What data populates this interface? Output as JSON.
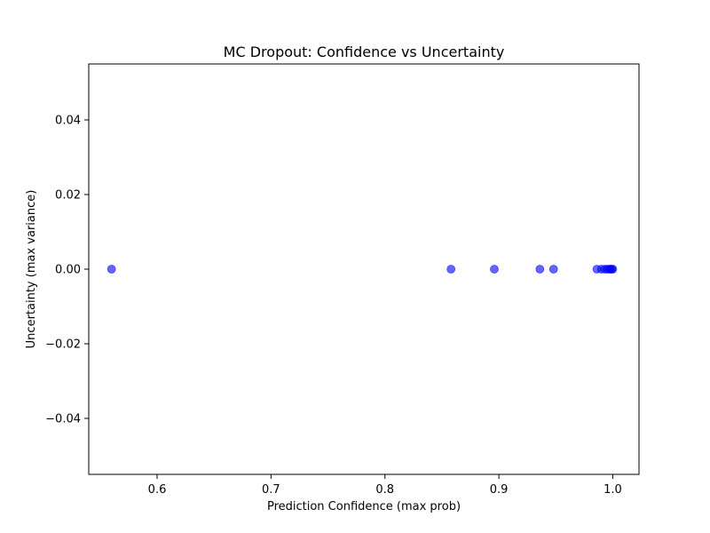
{
  "chart_data": {
    "type": "scatter",
    "title": "MC Dropout: Confidence vs Uncertainty",
    "xlabel": "Prediction Confidence (max prob)",
    "ylabel": "Uncertainty (max variance)",
    "xlim": [
      0.54,
      1.023
    ],
    "ylim": [
      -0.055,
      0.055
    ],
    "xticks": [
      0.6,
      0.7,
      0.8,
      0.9,
      1.0
    ],
    "xtick_labels": [
      "0.6",
      "0.7",
      "0.8",
      "0.9",
      "1.0"
    ],
    "yticks": [
      -0.04,
      -0.02,
      0.0,
      0.02,
      0.04
    ],
    "ytick_labels": [
      "−0.04",
      "−0.02",
      "0.00",
      "0.02",
      "0.04"
    ],
    "grid": false,
    "marker_color": "#0000ff",
    "marker_alpha": 0.6,
    "points": [
      {
        "x": 0.56,
        "y": 0.0
      },
      {
        "x": 0.858,
        "y": 0.0
      },
      {
        "x": 0.896,
        "y": 0.0
      },
      {
        "x": 0.936,
        "y": 0.0
      },
      {
        "x": 0.948,
        "y": 0.0
      },
      {
        "x": 0.986,
        "y": 0.0
      },
      {
        "x": 0.99,
        "y": 0.0
      },
      {
        "x": 0.993,
        "y": 0.0
      },
      {
        "x": 0.995,
        "y": 0.0
      },
      {
        "x": 0.997,
        "y": 0.0
      },
      {
        "x": 0.998,
        "y": 0.0
      },
      {
        "x": 0.999,
        "y": 0.0
      },
      {
        "x": 1.0,
        "y": 0.0
      }
    ]
  }
}
